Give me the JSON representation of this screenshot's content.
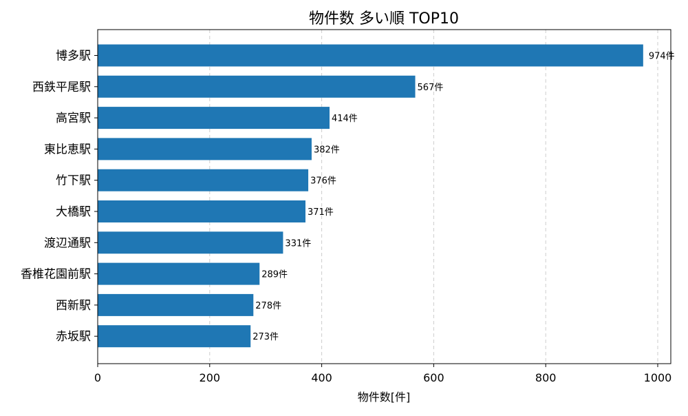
{
  "chart_data": {
    "type": "bar",
    "orientation": "horizontal",
    "title": "物件数 多い順 TOP10",
    "xlabel": "物件数[件]",
    "ylabel": "",
    "xlim": [
      0,
      1000
    ],
    "xticks": [
      0,
      200,
      400,
      600,
      800,
      1000
    ],
    "grid": "x-dashed",
    "bar_color": "#1f77b4",
    "value_suffix": "件",
    "categories": [
      "博多駅",
      "西鉄平尾駅",
      "高宮駅",
      "東比恵駅",
      "竹下駅",
      "大橋駅",
      "渡辺通駅",
      "香椎花園前駅",
      "西新駅",
      "赤坂駅"
    ],
    "values": [
      974,
      567,
      414,
      382,
      376,
      371,
      331,
      289,
      278,
      273
    ]
  }
}
